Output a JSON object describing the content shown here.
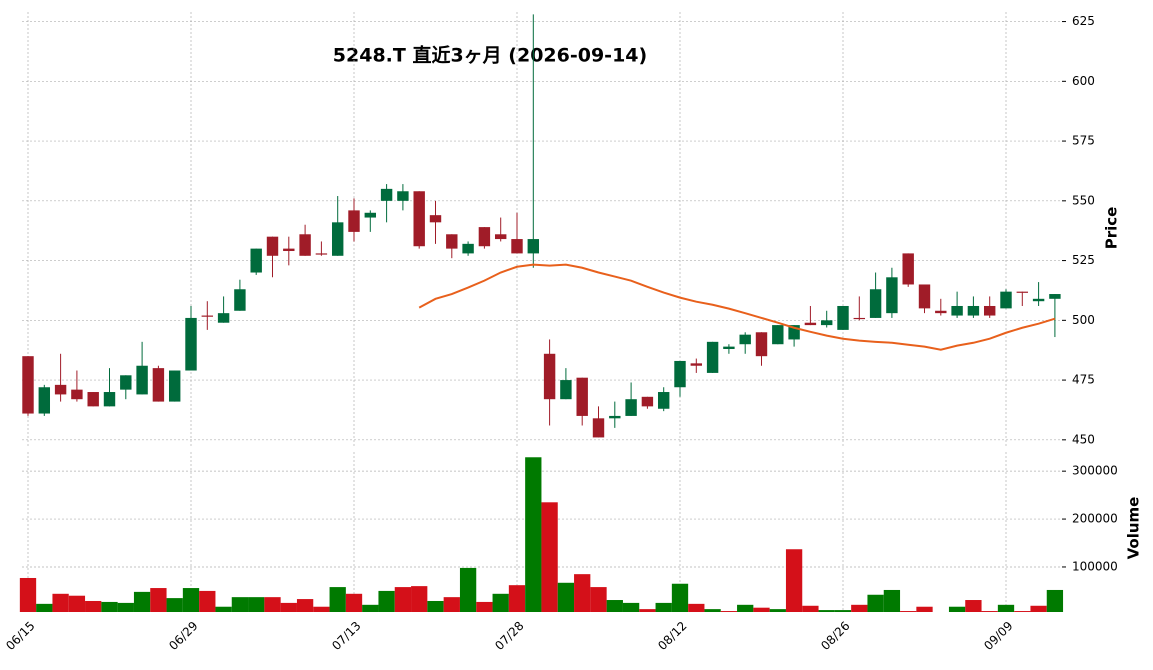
{
  "chart_data": {
    "type": "candlestick",
    "title": "5248.T  直近3ヶ月  (2026-09-14)",
    "ylabel": "Price",
    "categories": [
      "06/15",
      null,
      null,
      null,
      null,
      null,
      null,
      null,
      null,
      null,
      "06/29",
      null,
      null,
      null,
      null,
      null,
      null,
      null,
      null,
      null,
      "07/13",
      null,
      null,
      null,
      null,
      null,
      null,
      null,
      null,
      null,
      "07/28",
      null,
      null,
      null,
      null,
      null,
      null,
      null,
      null,
      null,
      "08/12",
      null,
      null,
      null,
      null,
      null,
      null,
      null,
      null,
      null,
      "08/26",
      null,
      null,
      null,
      null,
      null,
      null,
      null,
      null,
      null,
      "09/09",
      null,
      null,
      null
    ],
    "open": [
      485,
      461,
      473,
      471,
      470,
      464,
      471,
      469,
      480,
      466,
      479,
      502,
      499,
      504,
      520,
      535,
      530,
      536,
      528,
      527,
      546,
      543,
      550,
      550,
      554,
      544,
      536,
      528,
      539,
      536,
      534,
      528,
      486,
      467,
      476,
      459,
      459,
      460,
      468,
      463,
      472,
      482,
      478,
      488,
      490,
      495,
      490,
      492,
      499,
      498,
      496,
      501,
      501,
      503,
      528,
      515,
      504,
      502,
      502,
      506,
      505,
      512,
      508,
      509
    ],
    "high": [
      485,
      473,
      486,
      479,
      470,
      480,
      477,
      491,
      481,
      479,
      506,
      508,
      510,
      517,
      530,
      535,
      535,
      540,
      533,
      552,
      551,
      546,
      557,
      557,
      554,
      550,
      536,
      533,
      539,
      543,
      545,
      628,
      492,
      480,
      476,
      464,
      466,
      474,
      468,
      472,
      483,
      484,
      491,
      490,
      495,
      495,
      498,
      498,
      506,
      504,
      506,
      510,
      520,
      522,
      528,
      515,
      509,
      512,
      510,
      510,
      513,
      512,
      516,
      511
    ],
    "low": [
      460,
      460,
      466,
      466,
      464,
      464,
      467,
      469,
      466,
      466,
      479,
      496,
      499,
      504,
      519,
      518,
      523,
      527,
      527,
      527,
      533,
      537,
      541,
      546,
      530,
      532,
      526,
      527,
      530,
      533,
      528,
      522,
      456,
      467,
      456,
      451,
      455,
      460,
      463,
      462,
      468,
      478,
      478,
      486,
      486,
      481,
      490,
      489,
      498,
      497,
      496,
      500,
      501,
      501,
      514,
      503,
      502,
      501,
      501,
      501,
      505,
      506,
      506,
      493
    ],
    "close": [
      461,
      472,
      469,
      467,
      464,
      470,
      477,
      481,
      466,
      479,
      501,
      501.5,
      503,
      513,
      530,
      527,
      529,
      527,
      527.5,
      541,
      537,
      545,
      555,
      554,
      531,
      541,
      530,
      532,
      531,
      534,
      528,
      534,
      467,
      475,
      460,
      451,
      460,
      467,
      464,
      470,
      483,
      481,
      491,
      489,
      494,
      485,
      498,
      498,
      498,
      500,
      506,
      500.5,
      513,
      518,
      515,
      505,
      503,
      506,
      506,
      502,
      512,
      511.5,
      509,
      511
    ],
    "up_color": "#006b3c",
    "down_color": "#a01c28",
    "ylim": [
      447,
      629
    ],
    "yticks": [
      450,
      475,
      500,
      525,
      550,
      575,
      600,
      625
    ],
    "grid": true,
    "moving_average": {
      "color": "#e8601c",
      "values": [
        null,
        null,
        null,
        null,
        null,
        null,
        null,
        null,
        null,
        null,
        null,
        null,
        null,
        null,
        null,
        null,
        null,
        null,
        null,
        null,
        null,
        null,
        null,
        null,
        505.3,
        509,
        511,
        513.7,
        516.6,
        520,
        522.4,
        523.3,
        522.9,
        523.3,
        522,
        520,
        518.3,
        516.6,
        514,
        511.6,
        509.5,
        507.8,
        506.5,
        504.9,
        503,
        501,
        499,
        496.9,
        495.2,
        493.6,
        492.3,
        491.5,
        491,
        490.6,
        489.8,
        489,
        487.7,
        489.4,
        490.6,
        492.3,
        494.8,
        496.9,
        498.6,
        500.7
      ]
    },
    "volume": {
      "ylabel": "Volume",
      "values": [
        77000,
        23000,
        44000,
        40000,
        29000,
        27000,
        25000,
        48000,
        56000,
        35000,
        56000,
        50000,
        17000,
        37000,
        37000,
        37000,
        25000,
        33000,
        17000,
        58000,
        44000,
        21000,
        50000,
        58000,
        60000,
        29000,
        37000,
        98000,
        27000,
        44000,
        62000,
        329000,
        235000,
        67000,
        85000,
        58000,
        31000,
        25000,
        12000,
        25000,
        65000,
        23000,
        12000,
        8000,
        21000,
        15000,
        12000,
        137000,
        19000,
        10000,
        10000,
        21000,
        42000,
        52000,
        8000,
        17000,
        6000,
        17000,
        31000,
        8000,
        21000,
        8000,
        19000,
        52000
      ],
      "colors": [
        "#d41019",
        "#007a00",
        "#d41019",
        "#d41019",
        "#d41019",
        "#007a00",
        "#007a00",
        "#007a00",
        "#d41019",
        "#007a00",
        "#007a00",
        "#d41019",
        "#007a00",
        "#007a00",
        "#007a00",
        "#d41019",
        "#d41019",
        "#d41019",
        "#d41019",
        "#007a00",
        "#d41019",
        "#007a00",
        "#007a00",
        "#d41019",
        "#d41019",
        "#007a00",
        "#d41019",
        "#007a00",
        "#d41019",
        "#007a00",
        "#d41019",
        "#007a00",
        "#d41019",
        "#007a00",
        "#d41019",
        "#d41019",
        "#007a00",
        "#007a00",
        "#d41019",
        "#007a00",
        "#007a00",
        "#d41019",
        "#007a00",
        "#d41019",
        "#007a00",
        "#d41019",
        "#007a00",
        "#d41019",
        "#d41019",
        "#007a00",
        "#007a00",
        "#d41019",
        "#007a00",
        "#007a00",
        "#d41019",
        "#d41019",
        "#d41019",
        "#007a00",
        "#d41019",
        "#d41019",
        "#007a00",
        "#d41019",
        "#d41019",
        "#007a00"
      ],
      "ylim": [
        6000,
        340000
      ],
      "yticks": [
        100000,
        200000,
        300000
      ]
    }
  }
}
